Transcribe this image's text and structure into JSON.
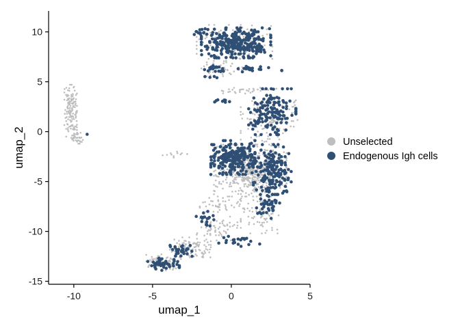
{
  "chart_data": {
    "type": "scatter",
    "title": "",
    "xlabel": "umap_1",
    "ylabel": "umap_2",
    "xlim": [
      -11.6,
      5
    ],
    "ylim": [
      -15.3,
      12.1
    ],
    "xticks": [
      -10,
      -5,
      0,
      5
    ],
    "xtick_labels": [
      "-10",
      "-5",
      "0",
      "5"
    ],
    "yticks": [
      10,
      5,
      0,
      -5,
      -10,
      -15
    ],
    "ytick_labels": [
      "10",
      "5",
      "0",
      "-5",
      "-10",
      "-15"
    ],
    "grid": false,
    "legend": {
      "position": "right"
    },
    "series": [
      {
        "name": "Unselected",
        "color": "#bebebe",
        "regions": [
          {
            "cx": -10.2,
            "cy": 2.0,
            "rx": 0.4,
            "ry": 2.7,
            "n": 140
          },
          {
            "cx": -9.8,
            "cy": -0.6,
            "rx": 0.5,
            "ry": 0.6,
            "n": 30
          },
          {
            "cx": 0.2,
            "cy": 9.0,
            "rx": 2.4,
            "ry": 1.7,
            "n": 150
          },
          {
            "cx": -0.6,
            "cy": 6.3,
            "rx": 1.3,
            "ry": 0.8,
            "n": 40
          },
          {
            "cx": 1.2,
            "cy": 4.1,
            "rx": 1.8,
            "ry": 0.3,
            "n": 30
          },
          {
            "cx": 1.2,
            "cy": -3.9,
            "rx": 2.3,
            "ry": 2.6,
            "n": 520
          },
          {
            "cx": 2.4,
            "cy": 1.0,
            "rx": 1.8,
            "ry": 2.3,
            "n": 130
          },
          {
            "cx": 1.8,
            "cy": -8.6,
            "rx": 1.2,
            "ry": 1.6,
            "n": 60
          },
          {
            "cx": -0.3,
            "cy": -7.4,
            "rx": 1.7,
            "ry": 0.8,
            "n": 50
          },
          {
            "cx": -0.9,
            "cy": -9.6,
            "rx": 1.3,
            "ry": 1.3,
            "n": 60
          },
          {
            "cx": -2.6,
            "cy": -11.6,
            "rx": 1.3,
            "ry": 1.0,
            "n": 110
          },
          {
            "cx": -4.3,
            "cy": -13.1,
            "rx": 1.1,
            "ry": 0.8,
            "n": 90
          },
          {
            "cx": -3.8,
            "cy": -2.3,
            "rx": 1.0,
            "ry": 0.3,
            "n": 12
          }
        ]
      },
      {
        "name": "Endogenous Igh cells",
        "color": "#2f4f74",
        "regions": [
          {
            "cx": 0.3,
            "cy": 8.9,
            "rx": 2.2,
            "ry": 1.5,
            "n": 280
          },
          {
            "cx": -1.9,
            "cy": 9.9,
            "rx": 0.5,
            "ry": 0.5,
            "n": 12
          },
          {
            "cx": -1.1,
            "cy": 6.2,
            "rx": 0.6,
            "ry": 0.8,
            "n": 22
          },
          {
            "cx": 1.4,
            "cy": 6.3,
            "rx": 1.8,
            "ry": 0.3,
            "n": 18
          },
          {
            "cx": 2.6,
            "cy": 2.0,
            "rx": 1.5,
            "ry": 2.3,
            "n": 140
          },
          {
            "cx": 0.1,
            "cy": -2.6,
            "rx": 1.4,
            "ry": 1.7,
            "n": 240
          },
          {
            "cx": 2.6,
            "cy": -3.8,
            "rx": 1.2,
            "ry": 2.5,
            "n": 170
          },
          {
            "cx": 2.4,
            "cy": -7.5,
            "rx": 0.8,
            "ry": 1.2,
            "n": 40
          },
          {
            "cx": 0.5,
            "cy": -11.0,
            "rx": 1.3,
            "ry": 0.5,
            "n": 20
          },
          {
            "cx": -1.6,
            "cy": -8.8,
            "rx": 0.8,
            "ry": 0.8,
            "n": 18
          },
          {
            "cx": -3.2,
            "cy": -11.8,
            "rx": 0.9,
            "ry": 0.7,
            "n": 30
          },
          {
            "cx": -4.3,
            "cy": -13.3,
            "rx": 1.0,
            "ry": 0.6,
            "n": 45
          },
          {
            "cx": -0.6,
            "cy": 3.1,
            "rx": 0.7,
            "ry": 0.2,
            "n": 8
          },
          {
            "cx": -9.1,
            "cy": -0.2,
            "rx": 0.1,
            "ry": 0.1,
            "n": 1
          }
        ]
      }
    ]
  }
}
